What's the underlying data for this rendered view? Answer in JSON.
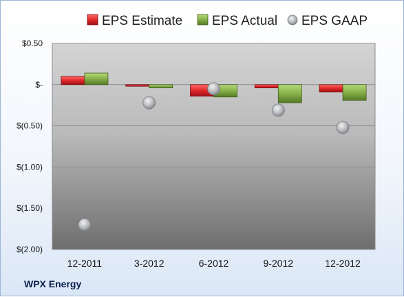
{
  "chart_data": {
    "type": "bar",
    "company": "WPX Energy",
    "categories": [
      "12-2011",
      "3-2012",
      "6-2012",
      "9-2012",
      "12-2012"
    ],
    "series": [
      {
        "name": "EPS Estimate",
        "kind": "bar",
        "color": "#d11f2a",
        "values": [
          0.1,
          -0.02,
          -0.14,
          -0.04,
          -0.09
        ]
      },
      {
        "name": "EPS Actual",
        "kind": "bar",
        "color": "#77a33a",
        "values": [
          0.14,
          -0.04,
          -0.15,
          -0.22,
          -0.19
        ]
      },
      {
        "name": "EPS GAAP",
        "kind": "scatter",
        "color": "#b9bcc0",
        "values": [
          -1.7,
          -0.22,
          -0.05,
          -0.31,
          -0.52
        ]
      }
    ],
    "y_ticks": [
      {
        "value": 0.5,
        "label": "$0.50"
      },
      {
        "value": 0,
        "label": "$-"
      },
      {
        "value": -0.5,
        "label": "$(0.50)"
      },
      {
        "value": -1,
        "label": "$(1.00)"
      },
      {
        "value": -1.5,
        "label": "$(1.50)"
      },
      {
        "value": -2,
        "label": "$(2.00)"
      }
    ],
    "ylim": [
      -2,
      0.5
    ],
    "grid": true,
    "legend": "top"
  }
}
